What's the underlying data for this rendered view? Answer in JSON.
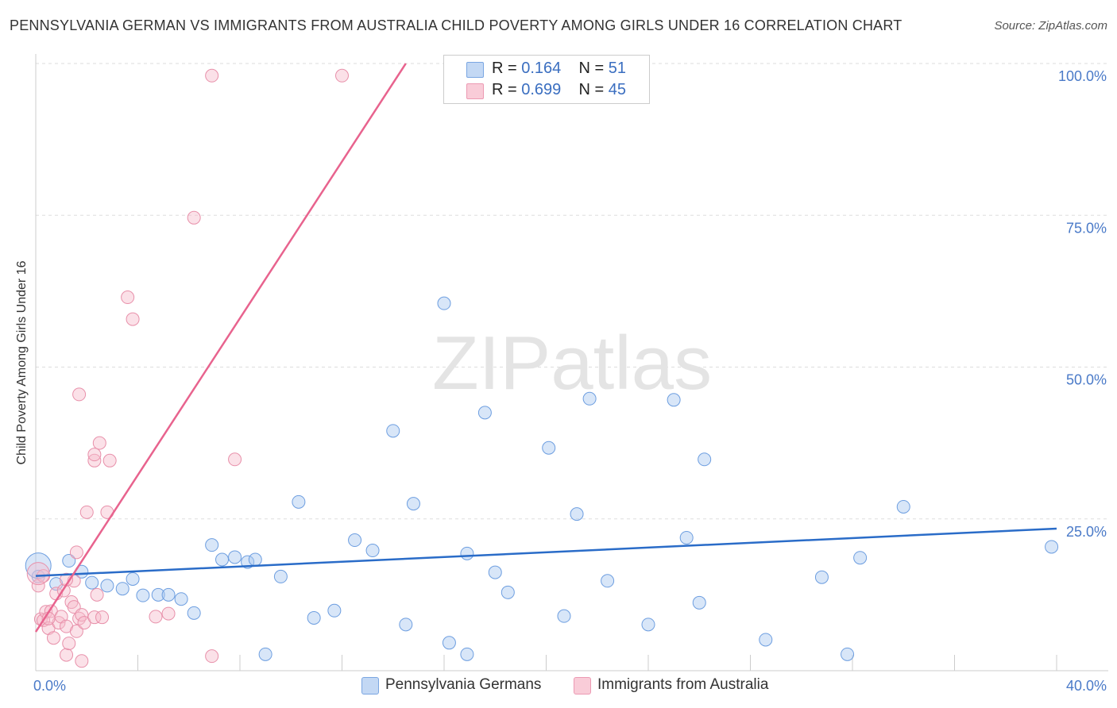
{
  "chart_data": {
    "type": "scatter",
    "title": "PENNSYLVANIA GERMAN VS IMMIGRANTS FROM AUSTRALIA CHILD POVERTY AMONG GIRLS UNDER 16 CORRELATION CHART",
    "source": "Source: ZipAtlas.com",
    "xlabel": "",
    "ylabel": "Child Poverty Among Girls Under 16",
    "xlim": [
      0,
      40
    ],
    "ylim": [
      0,
      100
    ],
    "x_tick_labels": [
      "0.0%",
      "40.0%"
    ],
    "y_ticks": [
      25,
      50,
      75,
      100
    ],
    "y_tick_labels": [
      "25.0%",
      "50.0%",
      "75.0%",
      "100.0%"
    ],
    "watermark": "ZIPatlas",
    "legend": [
      {
        "r_label": "R =",
        "r_value": "0.164",
        "n_label": "N =",
        "n_value": "51"
      },
      {
        "r_label": "R =",
        "r_value": "0.699",
        "n_label": "N =",
        "n_value": "45"
      }
    ],
    "series": [
      {
        "name": "Pennsylvania Germans",
        "color": "#a9c8f0",
        "stroke": "#6d9ee0",
        "trend_color": "#2a6cc8",
        "trend": [
          [
            0,
            15.6
          ],
          [
            40,
            23.4
          ]
        ],
        "points": [
          [
            0.1,
            15.5
          ],
          [
            0.8,
            14.3
          ],
          [
            1.3,
            18.1
          ],
          [
            1.8,
            16.3
          ],
          [
            2.2,
            14.5
          ],
          [
            2.8,
            14.0
          ],
          [
            3.4,
            13.5
          ],
          [
            3.8,
            15.1
          ],
          [
            4.2,
            12.4
          ],
          [
            4.8,
            12.5
          ],
          [
            5.2,
            12.5
          ],
          [
            5.7,
            11.8
          ],
          [
            6.2,
            9.5
          ],
          [
            6.9,
            20.7
          ],
          [
            7.3,
            18.3
          ],
          [
            7.8,
            18.7
          ],
          [
            8.3,
            17.9
          ],
          [
            8.6,
            18.3
          ],
          [
            9.0,
            2.7
          ],
          [
            9.6,
            15.5
          ],
          [
            10.3,
            27.8
          ],
          [
            10.9,
            8.7
          ],
          [
            11.7,
            9.9
          ],
          [
            12.5,
            21.5
          ],
          [
            13.2,
            19.8
          ],
          [
            14.0,
            39.5
          ],
          [
            14.5,
            7.6
          ],
          [
            14.8,
            27.5
          ],
          [
            16.0,
            60.5
          ],
          [
            16.2,
            4.6
          ],
          [
            16.9,
            2.7
          ],
          [
            16.9,
            19.3
          ],
          [
            17.6,
            42.5
          ],
          [
            18.0,
            16.2
          ],
          [
            18.5,
            12.9
          ],
          [
            20.1,
            36.7
          ],
          [
            20.7,
            9.0
          ],
          [
            21.2,
            25.8
          ],
          [
            21.7,
            44.8
          ],
          [
            22.4,
            14.8
          ],
          [
            24.0,
            7.6
          ],
          [
            25.0,
            44.6
          ],
          [
            25.5,
            21.9
          ],
          [
            26.0,
            11.2
          ],
          [
            26.2,
            34.8
          ],
          [
            28.6,
            5.1
          ],
          [
            30.8,
            15.4
          ],
          [
            31.8,
            2.7
          ],
          [
            32.3,
            18.6
          ],
          [
            34.0,
            27.0
          ],
          [
            39.8,
            20.4
          ]
        ]
      },
      {
        "name": "Immigrants from Australia",
        "color": "#f7bccc",
        "stroke": "#e890aa",
        "trend_color": "#e8638e",
        "trend": [
          [
            0,
            6.4
          ],
          [
            14.5,
            100
          ]
        ],
        "points": [
          [
            0.1,
            14.0
          ],
          [
            0.2,
            8.5
          ],
          [
            0.3,
            8.3
          ],
          [
            0.4,
            9.7
          ],
          [
            0.5,
            7.0
          ],
          [
            0.6,
            9.8
          ],
          [
            0.7,
            5.4
          ],
          [
            0.8,
            12.7
          ],
          [
            0.9,
            7.9
          ],
          [
            1.0,
            8.9
          ],
          [
            1.1,
            13.2
          ],
          [
            1.2,
            7.3
          ],
          [
            1.2,
            2.6
          ],
          [
            1.3,
            4.5
          ],
          [
            1.4,
            11.3
          ],
          [
            1.5,
            10.5
          ],
          [
            1.5,
            14.8
          ],
          [
            1.6,
            6.5
          ],
          [
            1.6,
            19.5
          ],
          [
            1.7,
            8.6
          ],
          [
            1.7,
            45.5
          ],
          [
            1.8,
            9.2
          ],
          [
            1.8,
            1.6
          ],
          [
            1.9,
            7.9
          ],
          [
            2.0,
            26.1
          ],
          [
            2.3,
            34.6
          ],
          [
            2.3,
            35.6
          ],
          [
            2.3,
            8.8
          ],
          [
            2.4,
            12.5
          ],
          [
            2.5,
            37.5
          ],
          [
            2.6,
            8.8
          ],
          [
            2.8,
            26.1
          ],
          [
            2.9,
            34.6
          ],
          [
            3.6,
            61.5
          ],
          [
            3.8,
            57.9
          ],
          [
            4.7,
            8.9
          ],
          [
            5.2,
            9.4
          ],
          [
            6.2,
            74.6
          ],
          [
            6.9,
            98.0
          ],
          [
            6.9,
            2.4
          ],
          [
            7.8,
            34.8
          ],
          [
            12.0,
            98.0
          ],
          [
            0.3,
            15.6
          ],
          [
            0.5,
            8.6
          ],
          [
            1.2,
            15.0
          ]
        ]
      }
    ]
  }
}
